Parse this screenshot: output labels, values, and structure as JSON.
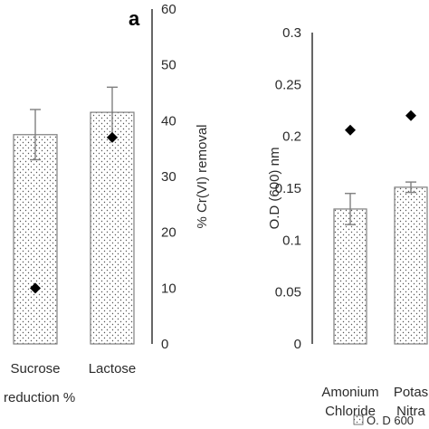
{
  "chart_data": [
    {
      "type": "bar",
      "panel_label": "a",
      "categories": [
        "Sucrose",
        "Lactose"
      ],
      "bar_series": {
        "values": [
          37.5,
          41.5
        ],
        "error": [
          4.5,
          4.5
        ]
      },
      "marker_series": {
        "values": [
          10,
          37
        ]
      },
      "y2label": "% Cr(VI) removal",
      "y2lim": [
        0,
        60
      ],
      "y2ticks": [
        0,
        10,
        20,
        30,
        40,
        50,
        60
      ],
      "xlabel": "reduction %",
      "colors": {
        "bar_fill": "#ffffff",
        "bar_dots": "#555555",
        "bar_border": "#7f7f7f",
        "marker": "#000000",
        "error_bar": "#7f7f7f"
      }
    },
    {
      "type": "bar",
      "categories": [
        "Amonium\nChloride",
        "Potas\nNitra"
      ],
      "bar_series": {
        "values": [
          0.13,
          0.151
        ],
        "error": [
          0.015,
          0.005
        ]
      },
      "marker_series": {
        "values": [
          0.206,
          0.22
        ]
      },
      "ylabel": "O.D (600) nm",
      "ylim": [
        0,
        0.3
      ],
      "yticks": [
        "0",
        "0.05",
        "0.1",
        "0.15",
        "0.2",
        "0.25",
        "0.3"
      ],
      "legend": {
        "label": "O. D 600"
      },
      "colors": {
        "bar_fill": "#ffffff",
        "bar_dots": "#555555",
        "bar_border": "#7f7f7f",
        "marker": "#000000",
        "error_bar": "#7f7f7f"
      }
    }
  ]
}
